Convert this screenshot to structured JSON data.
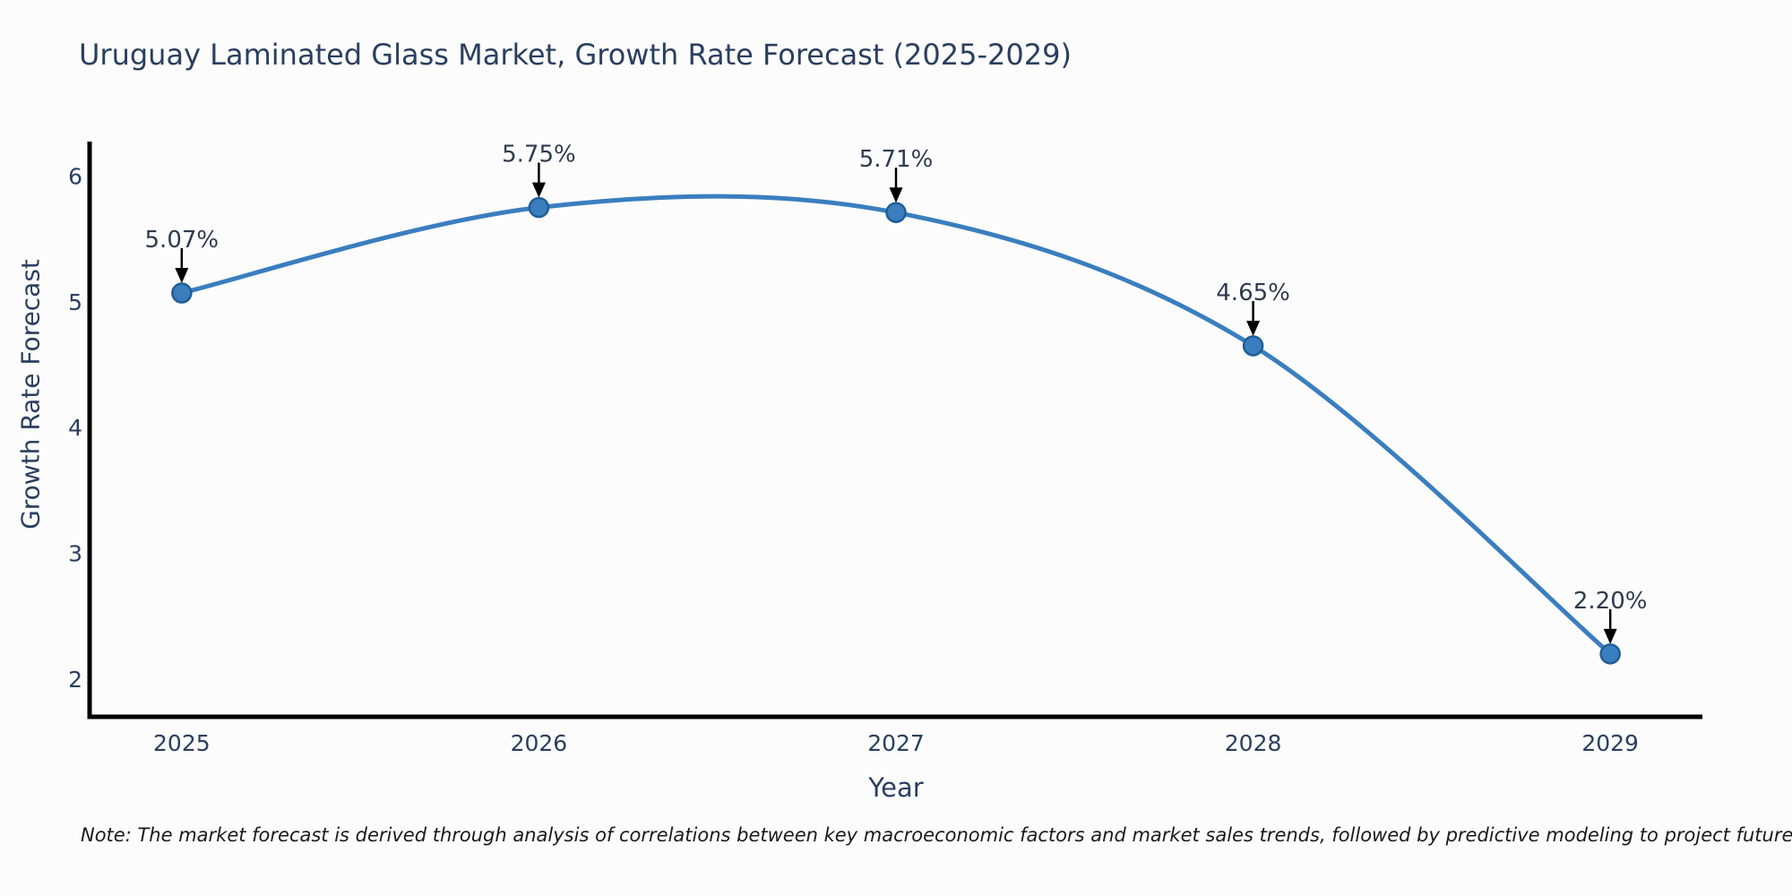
{
  "chart_data": {
    "type": "line",
    "title": "Uruguay Laminated Glass Market, Growth Rate Forecast (2025-2029)",
    "xlabel": "Year",
    "ylabel": "Growth Rate Forecast",
    "x": [
      2025,
      2026,
      2027,
      2028,
      2029
    ],
    "xticks": [
      "2025",
      "2026",
      "2027",
      "2028",
      "2029"
    ],
    "yticks": [
      6,
      5,
      4,
      3,
      2
    ],
    "series": [
      {
        "name": "Growth Rate Forecast",
        "values": [
          5.07,
          5.75,
          5.71,
          4.65,
          2.2
        ]
      }
    ],
    "point_labels": [
      "5.07%",
      "5.75%",
      "5.71%",
      "4.65%",
      "2.20%"
    ],
    "xlim": [
      2024.742,
      2029.258
    ],
    "ylim": [
      1.7,
      6.26
    ],
    "grid": false,
    "legend": false,
    "line_shape": "spline",
    "line_color": "#3a7ebf",
    "marker_color": "#3a7ebf",
    "marker_edge_color": "#205e96",
    "axis_color": "#000000",
    "annotation_arrow_color": "#000000",
    "background_color": "#fcfcfc",
    "title_color": "#2a3f5f"
  },
  "footer": {
    "note": "Note: The market forecast is derived through analysis of correlations between key macroeconomic factors and market sales trends, followed by predictive modeling to project future sales."
  }
}
